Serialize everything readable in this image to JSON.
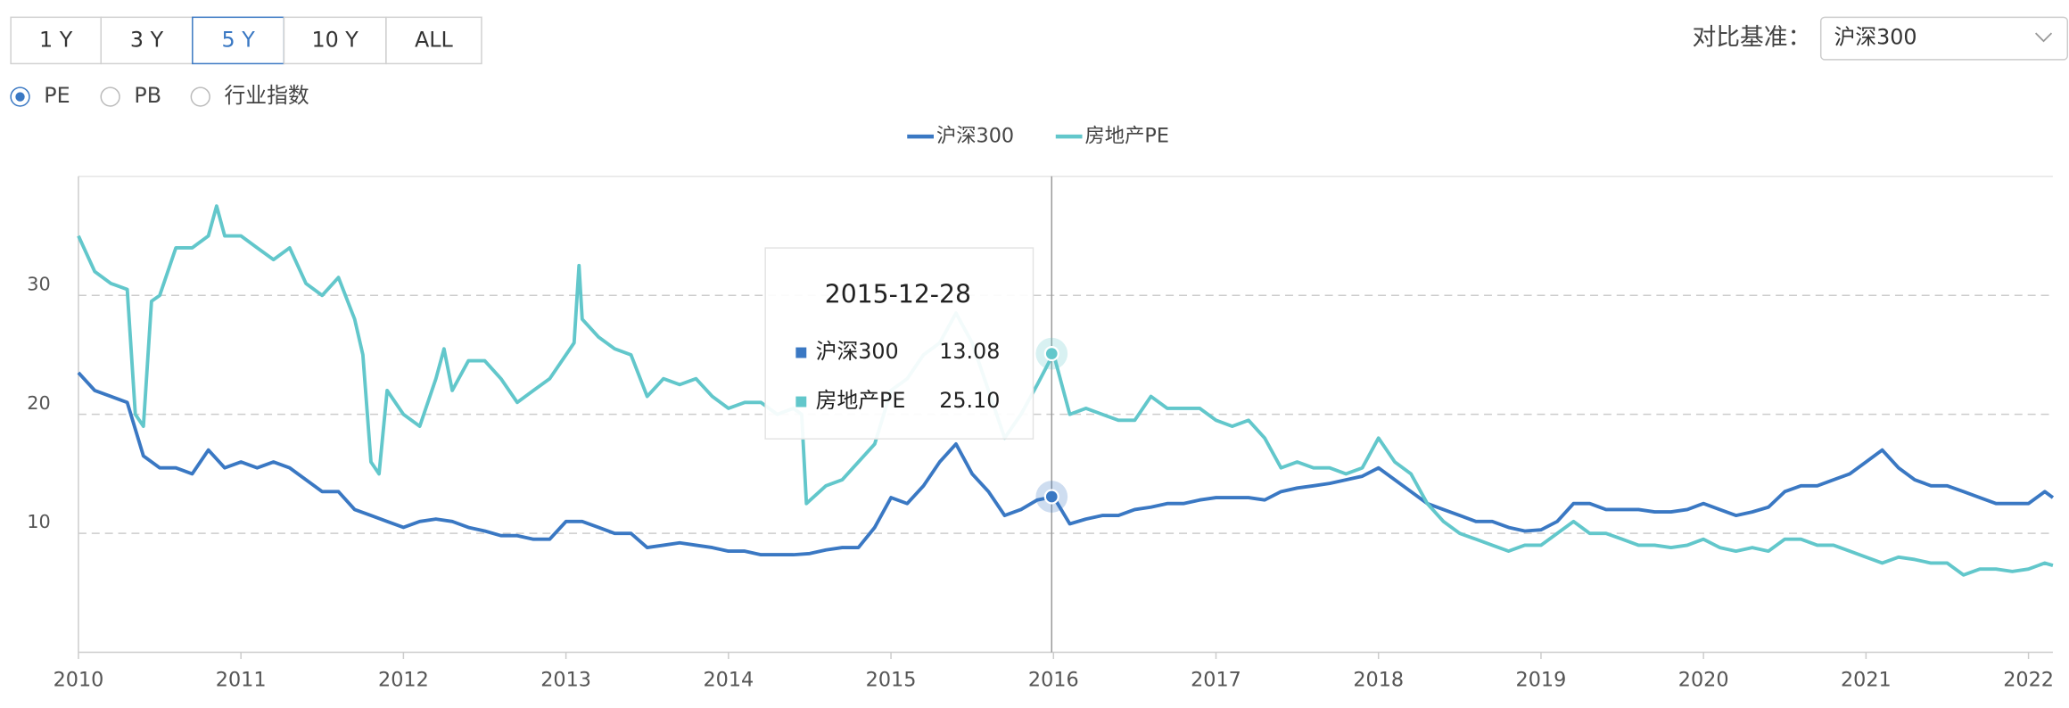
{
  "controls": {
    "periods": [
      {
        "label": "1 Y",
        "selected": false
      },
      {
        "label": "3 Y",
        "selected": false
      },
      {
        "label": "5 Y",
        "selected": true
      },
      {
        "label": "10 Y",
        "selected": false
      },
      {
        "label": "ALL",
        "selected": false
      }
    ],
    "metrics": [
      {
        "label": "PE",
        "selected": true
      },
      {
        "label": "PB",
        "selected": false
      },
      {
        "label": "行业指数",
        "selected": false
      }
    ],
    "benchmark_label": "对比基准：",
    "benchmark_value": "沪深300"
  },
  "chart_data": {
    "type": "line",
    "grid": true,
    "legend": "top",
    "xlim": [
      2010,
      2022.15
    ],
    "xticks": [
      2010,
      2011,
      2012,
      2013,
      2014,
      2015,
      2016,
      2017,
      2018,
      2019,
      2020,
      2021,
      2022
    ],
    "ylim": [
      0,
      40
    ],
    "yticks": [
      10,
      20,
      30
    ],
    "series": [
      {
        "name": "沪深300",
        "color": "#3a78c3",
        "x": [
          2010,
          2010.1,
          2010.2,
          2010.3,
          2010.4,
          2010.5,
          2010.6,
          2010.7,
          2010.8,
          2010.9,
          2011,
          2011.1,
          2011.2,
          2011.3,
          2011.4,
          2011.5,
          2011.6,
          2011.7,
          2011.8,
          2011.9,
          2012,
          2012.1,
          2012.2,
          2012.3,
          2012.4,
          2012.5,
          2012.6,
          2012.7,
          2012.8,
          2012.9,
          2013,
          2013.1,
          2013.2,
          2013.3,
          2013.4,
          2013.5,
          2013.6,
          2013.7,
          2013.8,
          2013.9,
          2014,
          2014.1,
          2014.2,
          2014.3,
          2014.4,
          2014.5,
          2014.6,
          2014.7,
          2014.8,
          2014.9,
          2015,
          2015.1,
          2015.2,
          2015.3,
          2015.4,
          2015.5,
          2015.6,
          2015.7,
          2015.8,
          2015.9,
          2016,
          2016.1,
          2016.2,
          2016.3,
          2016.4,
          2016.5,
          2016.6,
          2016.7,
          2016.8,
          2016.9,
          2017,
          2017.1,
          2017.2,
          2017.3,
          2017.4,
          2017.5,
          2017.6,
          2017.7,
          2017.8,
          2017.9,
          2018,
          2018.1,
          2018.2,
          2018.3,
          2018.4,
          2018.5,
          2018.6,
          2018.7,
          2018.8,
          2018.9,
          2019,
          2019.1,
          2019.2,
          2019.3,
          2019.4,
          2019.5,
          2019.6,
          2019.7,
          2019.8,
          2019.9,
          2020,
          2020.1,
          2020.2,
          2020.3,
          2020.4,
          2020.5,
          2020.6,
          2020.7,
          2020.8,
          2020.9,
          2021,
          2021.1,
          2021.2,
          2021.3,
          2021.4,
          2021.5,
          2021.6,
          2021.7,
          2021.8,
          2021.9,
          2022,
          2022.1,
          2022.15
        ],
        "values": [
          23.5,
          22,
          21.5,
          21,
          16.5,
          15.5,
          15.5,
          15,
          17,
          15.5,
          16,
          15.5,
          16,
          15.5,
          14.5,
          13.5,
          13.5,
          12,
          11.5,
          11,
          10.5,
          11,
          11.2,
          11,
          10.5,
          10.2,
          9.8,
          9.8,
          9.5,
          9.5,
          11,
          11,
          10.5,
          10,
          10,
          8.8,
          9,
          9.2,
          9,
          8.8,
          8.5,
          8.5,
          8.2,
          8.2,
          8.2,
          8.3,
          8.6,
          8.8,
          8.8,
          10.5,
          13,
          12.5,
          14,
          16,
          17.5,
          15,
          13.5,
          11.5,
          12,
          12.8,
          13.08,
          10.8,
          11.2,
          11.5,
          11.5,
          12,
          12.2,
          12.5,
          12.5,
          12.8,
          13,
          13,
          13,
          12.8,
          13.5,
          13.8,
          14,
          14.2,
          14.5,
          14.8,
          15.5,
          14.5,
          13.5,
          12.5,
          12,
          11.5,
          11,
          11,
          10.5,
          10.2,
          10.3,
          11,
          12.5,
          12.5,
          12,
          12,
          12,
          11.8,
          11.8,
          12,
          12.5,
          12,
          11.5,
          11.8,
          12.2,
          13.5,
          14,
          14,
          14.5,
          15,
          16,
          17,
          15.5,
          14.5,
          14,
          14,
          13.5,
          13,
          12.5,
          12.5,
          12.5,
          13.5,
          13
        ]
      },
      {
        "name": "房地产PE",
        "color": "#62c7cb",
        "x": [
          2010,
          2010.1,
          2010.2,
          2010.3,
          2010.35,
          2010.4,
          2010.45,
          2010.5,
          2010.6,
          2010.7,
          2010.8,
          2010.85,
          2010.9,
          2011,
          2011.1,
          2011.2,
          2011.3,
          2011.4,
          2011.5,
          2011.6,
          2011.7,
          2011.75,
          2011.8,
          2011.85,
          2011.9,
          2012,
          2012.1,
          2012.2,
          2012.25,
          2012.3,
          2012.4,
          2012.5,
          2012.6,
          2012.7,
          2012.8,
          2012.9,
          2013,
          2013.05,
          2013.08,
          2013.1,
          2013.2,
          2013.3,
          2013.4,
          2013.5,
          2013.6,
          2013.7,
          2013.8,
          2013.9,
          2014,
          2014.1,
          2014.2,
          2014.3,
          2014.4,
          2014.45,
          2014.48,
          2014.6,
          2014.7,
          2014.8,
          2014.9,
          2015,
          2015.1,
          2015.2,
          2015.3,
          2015.4,
          2015.5,
          2015.6,
          2015.7,
          2015.8,
          2015.9,
          2016,
          2016.1,
          2016.2,
          2016.3,
          2016.4,
          2016.5,
          2016.6,
          2016.7,
          2016.8,
          2016.9,
          2017,
          2017.1,
          2017.2,
          2017.3,
          2017.4,
          2017.5,
          2017.6,
          2017.7,
          2017.8,
          2017.9,
          2018,
          2018.1,
          2018.2,
          2018.3,
          2018.4,
          2018.5,
          2018.6,
          2018.7,
          2018.8,
          2018.9,
          2019,
          2019.1,
          2019.2,
          2019.3,
          2019.4,
          2019.5,
          2019.6,
          2019.7,
          2019.8,
          2019.9,
          2020,
          2020.1,
          2020.2,
          2020.3,
          2020.4,
          2020.5,
          2020.6,
          2020.7,
          2020.8,
          2020.9,
          2021,
          2021.1,
          2021.2,
          2021.3,
          2021.4,
          2021.5,
          2021.6,
          2021.7,
          2021.8,
          2021.9,
          2022,
          2022.1,
          2022.15
        ],
        "values": [
          35,
          32,
          31,
          30.5,
          20,
          19,
          29.5,
          30,
          34,
          34,
          35,
          37.5,
          35,
          35,
          34,
          33,
          34,
          31,
          30,
          31.5,
          28,
          25,
          16,
          15,
          22,
          20,
          19,
          23,
          25.5,
          22,
          24.5,
          24.5,
          23,
          21,
          22,
          23,
          25,
          26,
          32.5,
          28,
          26.5,
          25.5,
          25,
          21.5,
          23,
          22.5,
          23,
          21.5,
          20.5,
          21,
          21,
          20,
          20.5,
          20,
          12.5,
          14,
          14.5,
          16,
          17.5,
          22,
          23,
          25,
          26,
          28.5,
          26,
          22,
          18,
          20,
          22.5,
          25.1,
          20,
          20.5,
          20,
          19.5,
          19.5,
          21.5,
          20.5,
          20.5,
          20.5,
          19.5,
          19,
          19.5,
          18,
          15.5,
          16,
          15.5,
          15.5,
          15,
          15.5,
          18,
          16,
          15,
          12.5,
          11,
          10,
          9.5,
          9,
          8.5,
          9,
          9,
          10,
          11,
          10,
          10,
          9.5,
          9,
          9,
          8.8,
          9,
          9.5,
          8.8,
          8.5,
          8.8,
          8.5,
          9.5,
          9.5,
          9,
          9,
          8.5,
          8,
          7.5,
          8,
          7.8,
          7.5,
          7.5,
          6.5,
          7,
          7,
          6.8,
          7,
          7.5,
          7.3
        ]
      }
    ],
    "tooltip": {
      "date": "2015-12-28",
      "values": [
        13.08,
        25.1
      ],
      "value_labels": [
        "13.08",
        "25.10"
      ]
    }
  }
}
